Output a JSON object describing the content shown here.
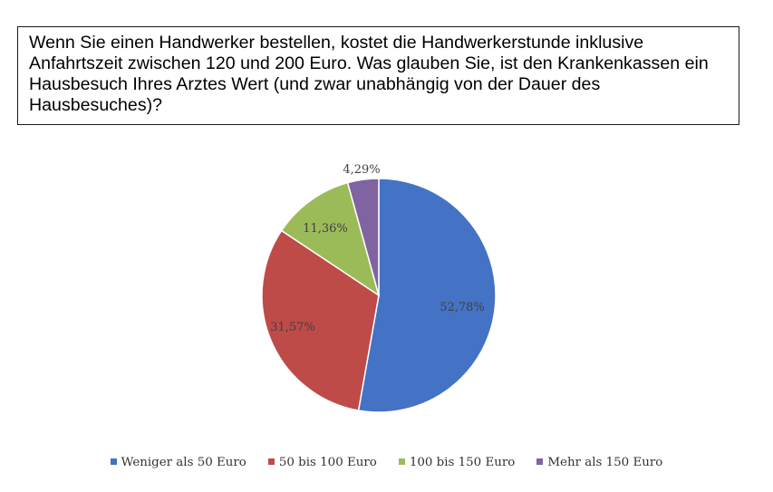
{
  "question": "Wenn Sie einen Handwerker bestellen, kostet die Handwerkerstunde inklusive Anfahrtszeit zwischen 120 und 200 Euro. Was glauben Sie, ist den Krankenkassen ein Hausbesuch Ihres Arztes Wert (und zwar unabhängig von der Dauer des Hausbesuches)?",
  "chart_data": {
    "type": "pie",
    "categories": [
      "Weniger als 50 Euro",
      "50 bis 100 Euro",
      "100 bis 150 Euro",
      "Mehr als 150 Euro"
    ],
    "values": [
      52.78,
      31.57,
      11.36,
      4.29
    ],
    "data_labels": [
      "52,78%",
      "31,57%",
      "11,36%",
      "4,29%"
    ],
    "colors": [
      "#4472C4",
      "#BE4B48",
      "#9BBB59",
      "#8064A2"
    ],
    "start_angle": "12 o'clock, clockwise",
    "legend_position": "bottom"
  }
}
